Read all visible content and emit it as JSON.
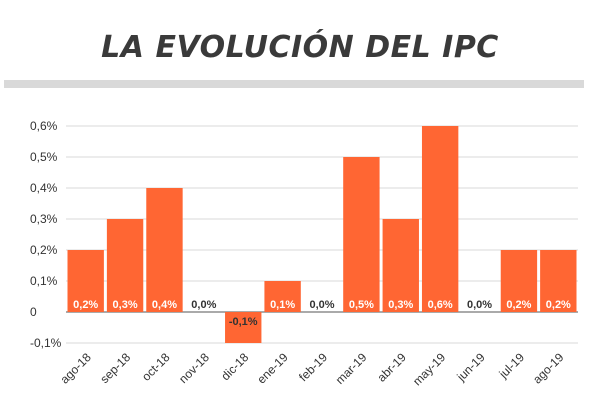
{
  "colors": {
    "bar": "#ff6633",
    "grid": "#d9d9d9",
    "axis": "#555555",
    "value_on_bar": "#ffffff",
    "value_off_bar": "#333333"
  },
  "chart_data": {
    "type": "bar",
    "title": "LA EVOLUCIÓN DEL IPC",
    "xlabel": "",
    "ylabel": "",
    "ylim": [
      -0.1,
      0.6
    ],
    "grid": true,
    "legend": "none",
    "categories": [
      "ago-18",
      "sep-18",
      "oct-18",
      "nov-18",
      "dic-18",
      "ene-19",
      "feb-19",
      "mar-19",
      "abr-19",
      "may-19",
      "jun-19",
      "jul-19",
      "ago-19"
    ],
    "values": [
      0.2,
      0.3,
      0.4,
      0.0,
      -0.1,
      0.1,
      0.0,
      0.5,
      0.3,
      0.6,
      0.0,
      0.2,
      0.2
    ],
    "value_labels": [
      "0,2%",
      "0,3%",
      "0,4%",
      "0,0%",
      "-0,1%",
      "0,1%",
      "0,0%",
      "0,5%",
      "0,3%",
      "0,6%",
      "0,0%",
      "0,2%",
      "0,2%"
    ],
    "y_ticks": [
      {
        "value": 0.6,
        "label": "0,6%"
      },
      {
        "value": 0.5,
        "label": "0,5%"
      },
      {
        "value": 0.4,
        "label": "0,4%"
      },
      {
        "value": 0.3,
        "label": "0,3%"
      },
      {
        "value": 0.2,
        "label": "0,2%"
      },
      {
        "value": 0.1,
        "label": "0,1%"
      },
      {
        "value": 0.0,
        "label": "0"
      },
      {
        "value": -0.1,
        "label": "-0,1%"
      }
    ]
  }
}
